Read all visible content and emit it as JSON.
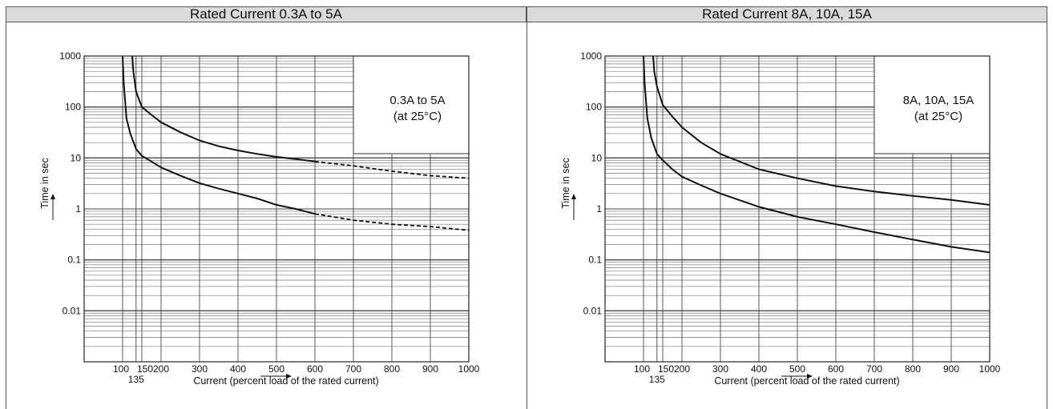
{
  "chart_data": [
    {
      "type": "line",
      "header": "Rated Current 0.3A to 5A",
      "annotation": [
        "0.3A to 5A",
        "(at 25°C)"
      ],
      "xlabel": "Current (percent load of the rated current)",
      "ylabel": "Time in sec",
      "xscale": "linear",
      "yscale": "log",
      "xlim": [
        0,
        1000
      ],
      "ylim": [
        0.001,
        1000
      ],
      "xticks": [
        100,
        135,
        150,
        200,
        300,
        400,
        500,
        600,
        700,
        800,
        900,
        1000
      ],
      "xtick_labels": [
        "100",
        "135",
        "150",
        "200",
        "300",
        "400",
        "500",
        "600",
        "700",
        "800",
        "900",
        "1000"
      ],
      "yticks": [
        1000,
        100,
        10,
        1,
        0.1,
        0.01
      ],
      "ytick_labels": [
        "1000",
        "100",
        "10",
        "1",
        "0.1",
        "0.01"
      ],
      "grid": true,
      "series": [
        {
          "x": [
            100,
            103,
            110,
            120,
            135,
            150,
            175,
            200,
            250,
            300,
            350,
            400,
            450,
            500,
            550,
            600
          ],
          "y": [
            1000,
            300,
            60,
            30,
            15,
            11,
            8.5,
            6.5,
            4.5,
            3.2,
            2.5,
            2.0,
            1.6,
            1.2,
            1.0,
            0.8
          ],
          "dash_x": [
            600,
            700,
            800,
            900,
            1000
          ],
          "dash_y": [
            0.8,
            0.6,
            0.5,
            0.45,
            0.38
          ]
        },
        {
          "x": [
            125,
            128,
            135,
            150,
            175,
            200,
            250,
            300,
            350,
            400,
            450,
            500,
            550,
            600
          ],
          "y": [
            1000,
            500,
            200,
            100,
            70,
            50,
            32,
            22,
            17,
            14,
            12,
            10.5,
            9.5,
            8.5
          ],
          "dash_x": [
            600,
            700,
            800,
            900,
            1000
          ],
          "dash_y": [
            8.5,
            7,
            5.5,
            4.5,
            4
          ]
        }
      ]
    },
    {
      "type": "line",
      "header": "Rated Current 8A, 10A, 15A",
      "annotation": [
        "8A, 10A, 15A",
        "(at 25°C)"
      ],
      "xlabel": "Current (percent load of the rated current)",
      "ylabel": "Time in sec",
      "xscale": "linear",
      "yscale": "log",
      "xlim": [
        0,
        1000
      ],
      "ylim": [
        0.001,
        1000
      ],
      "xticks": [
        100,
        135,
        150,
        200,
        300,
        400,
        500,
        600,
        700,
        800,
        900,
        1000
      ],
      "xtick_labels": [
        "100",
        "135",
        "150",
        "200",
        "300",
        "400",
        "500",
        "600",
        "700",
        "800",
        "900",
        "1000"
      ],
      "yticks": [
        1000,
        100,
        10,
        1,
        0.1,
        0.01
      ],
      "ytick_labels": [
        "1000",
        "100",
        "10",
        "1",
        "0.1",
        "0.01"
      ],
      "grid": true,
      "series": [
        {
          "x": [
            100,
            103,
            110,
            120,
            135,
            150,
            175,
            200,
            250,
            300,
            400,
            500,
            600,
            700,
            800,
            900,
            1000
          ],
          "y": [
            1000,
            300,
            60,
            25,
            12,
            9,
            6,
            4.3,
            2.9,
            2.0,
            1.1,
            0.7,
            0.5,
            0.35,
            0.25,
            0.18,
            0.14
          ],
          "dash_x": [],
          "dash_y": []
        },
        {
          "x": [
            125,
            128,
            135,
            150,
            175,
            200,
            250,
            300,
            400,
            500,
            600,
            700,
            800,
            900,
            1000
          ],
          "y": [
            1000,
            500,
            250,
            110,
            65,
            40,
            20,
            12,
            6,
            4,
            2.8,
            2.2,
            1.8,
            1.5,
            1.2
          ],
          "dash_x": [],
          "dash_y": []
        }
      ]
    }
  ]
}
